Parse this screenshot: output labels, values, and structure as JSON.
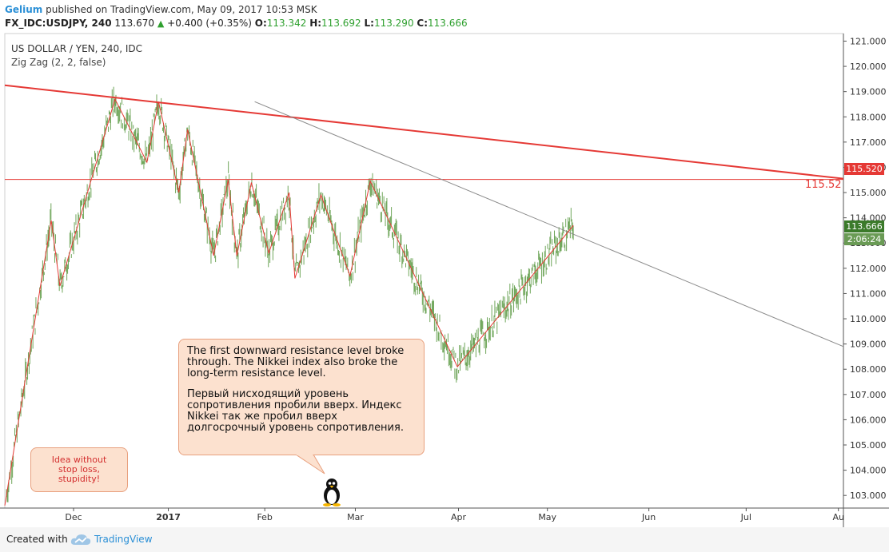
{
  "header": {
    "author": "Gelium",
    "published": "published on TradingView.com, May 09, 2017 10:53 MSK"
  },
  "ohlc": {
    "symbol": "FX_IDC:USDJPY, 240",
    "last": "113.670",
    "change": "+0.400 (+0.35%)",
    "o_label": "O:",
    "o": "113.342",
    "h_label": "H:",
    "h": "113.692",
    "l_label": "L:",
    "l": "113.290",
    "c_label": "C:",
    "c": "113.666"
  },
  "legend": {
    "title": "US DOLLAR / YEN, 240, IDC",
    "indicator": "Zig Zag (2, 2, false)"
  },
  "callout": {
    "en": "The first downward resistance level broke through. The Nikkei index also broke the long-term resistance level.",
    "ru": "Первый нисходящий уровень сопротивления пробили вверх. Индекс Nikkei так же пробил вверх долгосрочный уровень сопротивления."
  },
  "idea_note": [
    "Idea without",
    "stop loss,",
    "stupidity!"
  ],
  "price_tags": {
    "resistance": "115.520",
    "current": "113.666",
    "countdown": "2:06:24"
  },
  "resistance_label": "115.52",
  "footer": {
    "created": "Created with",
    "brand": "TradingView"
  },
  "colors": {
    "zigzag": "#e53935",
    "trendline": "#e53935",
    "gray_trend": "#8a8a8a",
    "candles": "#6fa65a",
    "accent": "#2a8fd6",
    "current_tag": "#3b7a2a",
    "countdown_tag": "#6a9b55"
  },
  "icons": {
    "penguin": "penguin-icon",
    "logo": "tradingview-cloud-icon"
  },
  "chart_data": {
    "type": "line",
    "title": "US DOLLAR / YEN, 240, IDC",
    "ylim": [
      102.5,
      121.3
    ],
    "y_ticks": [
      "121.000",
      "120.000",
      "119.000",
      "118.000",
      "117.000",
      "116.000",
      "115.000",
      "114.000",
      "113.000",
      "112.000",
      "111.000",
      "110.000",
      "109.000",
      "108.000",
      "107.000",
      "106.000",
      "105.000",
      "104.000",
      "103.000"
    ],
    "x_ticks": [
      "Dec",
      "2017",
      "Feb",
      "Mar",
      "Apr",
      "May",
      "Jun",
      "Jul",
      "Au"
    ],
    "series": [
      {
        "name": "Zig Zag (2, 2, false)",
        "points": [
          [
            0.0,
            102.6
          ],
          [
            0.08,
            113.9
          ],
          [
            0.095,
            111.3
          ],
          [
            0.19,
            118.7
          ],
          [
            0.245,
            116.2
          ],
          [
            0.265,
            118.6
          ],
          [
            0.3,
            115.0
          ],
          [
            0.315,
            117.5
          ],
          [
            0.36,
            112.5
          ],
          [
            0.385,
            115.5
          ],
          [
            0.4,
            112.5
          ],
          [
            0.425,
            115.4
          ],
          [
            0.455,
            112.6
          ],
          [
            0.49,
            115.0
          ],
          [
            0.5,
            111.6
          ],
          [
            0.545,
            114.9
          ],
          [
            0.595,
            111.7
          ],
          [
            0.63,
            115.45
          ],
          [
            0.78,
            108.1
          ],
          [
            0.98,
            113.7
          ]
        ]
      },
      {
        "name": "Resistance (red)",
        "points": [
          [
            0.0,
            119.25
          ],
          [
            1.0,
            115.55
          ]
        ]
      },
      {
        "name": "Trendline (gray)",
        "points": [
          [
            0.298,
            118.6
          ],
          [
            1.0,
            108.9
          ]
        ]
      },
      {
        "name": "Horizontal level",
        "points": [
          [
            0.0,
            115.52
          ],
          [
            1.0,
            115.52
          ]
        ]
      }
    ],
    "grid": true,
    "legend": "top-left"
  }
}
